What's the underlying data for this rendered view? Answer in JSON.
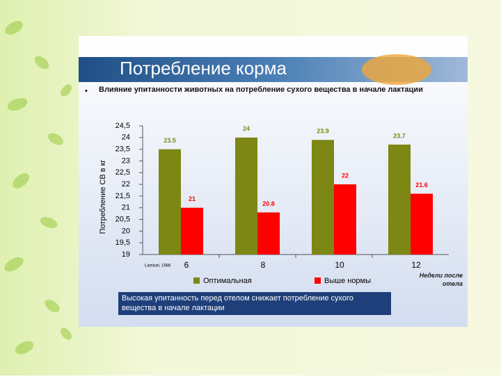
{
  "chart_data": {
    "type": "bar",
    "title": "Потребление корма",
    "subtitle": "Влияние упитанности животных на потребление сухого вещества в начале лактации",
    "y_label": "Потребление СВ в кг",
    "x_label": "Недели после отела",
    "source": "Lamicel, 1986",
    "annotation": "Высокая упитанность перед отелом снижает потребление сухого вещества в начале лактации",
    "categories": [
      "6",
      "8",
      "10",
      "12"
    ],
    "series": [
      {
        "name": "Оптимальная",
        "color": "#7d8714",
        "values": [
          23.5,
          24,
          23.9,
          23.7
        ]
      },
      {
        "name": "Выше нормы",
        "color": "#ff0000",
        "values": [
          21,
          20.8,
          22,
          21.6
        ]
      }
    ],
    "ylim": [
      19,
      24.5
    ],
    "yticks": [
      19,
      {
        "value": 19.5,
        "label": "19,5"
      },
      20,
      {
        "value": 20.5,
        "label": "20,5"
      },
      21,
      {
        "value": 21.5,
        "label": "21,5"
      },
      22,
      {
        "value": 22.5,
        "label": "22,5"
      },
      23,
      {
        "value": 23.5,
        "label": "23,5"
      },
      24,
      {
        "value": 24.5,
        "label": "24,5"
      }
    ]
  }
}
